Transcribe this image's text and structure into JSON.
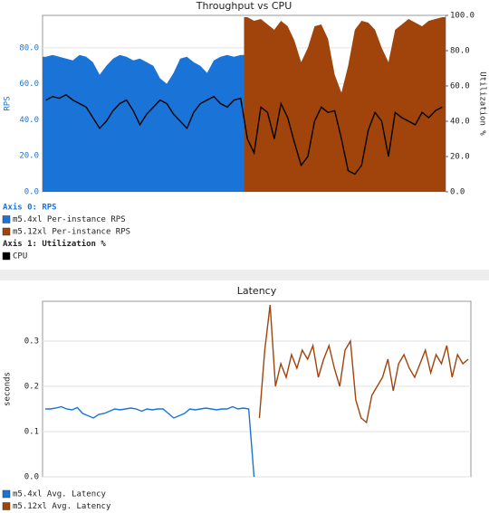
{
  "chart_data": [
    {
      "type": "area",
      "title": "Throughput vs CPU",
      "ylabel": "RPS",
      "y2label": "Utilization %",
      "legend_titles": [
        "Axis 0: RPS",
        "Axis 1: Utilization %"
      ],
      "ylim": [
        0,
        98
      ],
      "yticks": [
        {
          "value": 0,
          "label": "0.0"
        },
        {
          "value": 20,
          "label": "20.0"
        },
        {
          "value": 40,
          "label": "40.0"
        },
        {
          "value": 60,
          "label": "60.0"
        },
        {
          "value": 80,
          "label": "80.0"
        }
      ],
      "y2lim": [
        0,
        100
      ],
      "y2ticks": [
        {
          "value": 0,
          "label": "0.0"
        },
        {
          "value": 20,
          "label": "20.0"
        },
        {
          "value": 40,
          "label": "40.0"
        },
        {
          "value": 60,
          "label": "60.0"
        },
        {
          "value": 80,
          "label": "80.0"
        },
        {
          "value": 100,
          "label": "100.0"
        }
      ],
      "grid": true,
      "series": [
        {
          "name": "m5.4xl  Per-instance RPS",
          "color": "#1a74d8",
          "values": [
            75,
            76,
            75,
            74,
            73,
            76,
            75,
            72,
            65,
            70,
            74,
            76,
            75,
            73,
            74,
            72,
            70,
            63,
            60,
            66,
            74,
            75,
            72,
            70,
            66,
            73,
            75,
            76,
            75,
            76,
            null,
            null,
            null,
            null,
            null,
            null,
            null,
            null,
            null,
            null,
            null,
            null,
            null,
            null,
            null,
            null,
            null,
            null,
            null,
            null,
            null,
            null,
            null,
            null,
            null,
            null,
            null,
            null,
            null,
            null
          ]
        },
        {
          "name": "m5.12xl Per-instance RPS",
          "color": "#a0440c",
          "values": [
            null,
            null,
            null,
            null,
            null,
            null,
            null,
            null,
            null,
            null,
            null,
            null,
            null,
            null,
            null,
            null,
            null,
            null,
            null,
            null,
            null,
            null,
            null,
            null,
            null,
            null,
            null,
            null,
            null,
            null,
            97,
            95,
            96,
            93,
            90,
            95,
            92,
            84,
            72,
            80,
            92,
            93,
            85,
            65,
            55,
            70,
            90,
            95,
            94,
            90,
            80,
            72,
            90,
            93,
            96,
            94,
            92,
            95,
            96,
            97
          ]
        },
        {
          "name": "CPU",
          "color": "#000000",
          "type": "line",
          "axis": "y2",
          "values": [
            52,
            54,
            53,
            55,
            52,
            50,
            48,
            42,
            36,
            40,
            46,
            50,
            52,
            46,
            38,
            44,
            48,
            52,
            50,
            44,
            40,
            36,
            45,
            50,
            52,
            54,
            50,
            48,
            52,
            53,
            30,
            22,
            48,
            45,
            30,
            50,
            42,
            28,
            15,
            20,
            40,
            48,
            45,
            46,
            30,
            12,
            10,
            15,
            35,
            45,
            40,
            20,
            45,
            42,
            40,
            38,
            45,
            42,
            46,
            48
          ]
        }
      ]
    },
    {
      "type": "line",
      "title": "Latency",
      "ylabel": "seconds",
      "ylim": [
        0,
        0.388
      ],
      "yticks": [
        {
          "value": 0,
          "label": "0.0"
        },
        {
          "value": 0.1,
          "label": "0.1"
        },
        {
          "value": 0.2,
          "label": "0.2"
        },
        {
          "value": 0.3,
          "label": "0.3"
        }
      ],
      "grid": true,
      "series": [
        {
          "name": "m5.4xl  Avg. Latency",
          "color": "#1a74d8",
          "values": [
            0.15,
            0.15,
            0.152,
            0.155,
            0.15,
            0.148,
            0.153,
            0.14,
            0.135,
            0.13,
            0.138,
            0.14,
            0.145,
            0.15,
            0.148,
            0.15,
            0.152,
            0.15,
            0.145,
            0.15,
            0.148,
            0.15,
            0.15,
            0.14,
            0.13,
            0.135,
            0.14,
            0.15,
            0.148,
            0.15,
            0.152,
            0.15,
            0.148,
            0.15,
            0.15,
            0.155,
            0.15,
            0.152,
            0.15,
            0.0,
            null,
            null,
            null,
            null,
            null,
            null,
            null,
            null,
            null,
            null,
            null,
            null,
            null,
            null,
            null,
            null,
            null,
            null,
            null,
            null,
            null,
            null,
            null,
            null,
            null,
            null,
            null,
            null,
            null,
            null,
            null,
            null,
            null,
            null,
            null,
            null,
            null,
            null,
            null,
            null
          ]
        },
        {
          "name": "m5.12xl Avg. Latency",
          "color": "#a0440c",
          "values": [
            null,
            null,
            null,
            null,
            null,
            null,
            null,
            null,
            null,
            null,
            null,
            null,
            null,
            null,
            null,
            null,
            null,
            null,
            null,
            null,
            null,
            null,
            null,
            null,
            null,
            null,
            null,
            null,
            null,
            null,
            null,
            null,
            null,
            null,
            null,
            null,
            null,
            null,
            null,
            null,
            0.13,
            0.28,
            0.38,
            0.2,
            0.25,
            0.22,
            0.27,
            0.24,
            0.28,
            0.26,
            0.29,
            0.22,
            0.26,
            0.29,
            0.24,
            0.2,
            0.28,
            0.3,
            0.17,
            0.13,
            0.12,
            0.18,
            0.2,
            0.22,
            0.26,
            0.19,
            0.25,
            0.27,
            0.24,
            0.22,
            0.25,
            0.28,
            0.23,
            0.27,
            0.25,
            0.29,
            0.22,
            0.27,
            0.25,
            0.26
          ]
        }
      ]
    }
  ]
}
